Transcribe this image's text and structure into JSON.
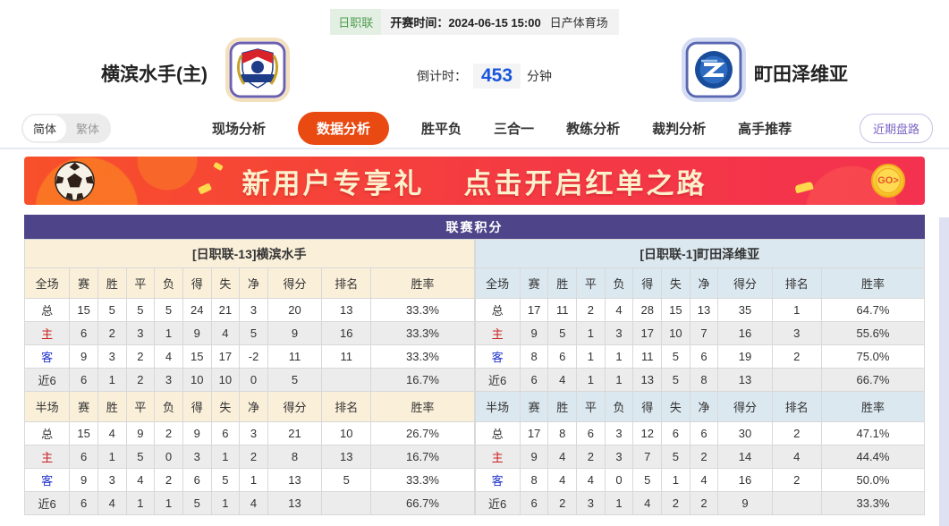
{
  "colors": {
    "title_bar_purple": "#4e4489",
    "active_tab_orange": "#e84a12",
    "home_label_red": "#cc2020",
    "away_label_blue": "#2233cc",
    "league_badge_green": "#4f9d4f",
    "countdown_blue": "#1a56db",
    "home_header_bg": "#faf0da",
    "away_header_bg": "#dce8f0",
    "banner_red": "#f43a43"
  },
  "topbar": {
    "league_badge": "日职联",
    "kickoff": "开赛时间：2024-06-15 15:00",
    "venue": "日产体育场"
  },
  "header": {
    "home_team": "横滨水手(主)",
    "away_team": "町田泽维亚",
    "countdown_label": "倒计时：",
    "countdown_value": "453",
    "countdown_unit": "分钟"
  },
  "nav": {
    "lang_simplified": "简体",
    "lang_traditional": "繁体",
    "tabs": [
      {
        "label": "现场分析",
        "active": false
      },
      {
        "label": "数据分析",
        "active": true
      },
      {
        "label": "胜平负",
        "active": false
      },
      {
        "label": "三合一",
        "active": false
      },
      {
        "label": "教练分析",
        "active": false
      },
      {
        "label": "裁判分析",
        "active": false
      },
      {
        "label": "高手推荐",
        "active": false
      }
    ],
    "recent_button": "近期盘路"
  },
  "banner": {
    "text1": "新用户专享礼",
    "text2": "点击开启红单之路",
    "go_label": "GO>"
  },
  "table": {
    "title": "联赛积分",
    "home": {
      "team_header": "[日职联-13]横滨水手",
      "full_columns": [
        "全场",
        "赛",
        "胜",
        "平",
        "负",
        "得",
        "失",
        "净",
        "得分",
        "排名",
        "胜率"
      ],
      "full_rows": [
        {
          "label": "总",
          "values": [
            "15",
            "5",
            "5",
            "5",
            "24",
            "21",
            "3",
            "20",
            "13",
            "33.3%"
          ]
        },
        {
          "label": "主",
          "values": [
            "6",
            "2",
            "3",
            "1",
            "9",
            "4",
            "5",
            "9",
            "16",
            "33.3%"
          ]
        },
        {
          "label": "客",
          "values": [
            "9",
            "3",
            "2",
            "4",
            "15",
            "17",
            "-2",
            "11",
            "11",
            "33.3%"
          ]
        },
        {
          "label": "近6",
          "values": [
            "6",
            "1",
            "2",
            "3",
            "10",
            "10",
            "0",
            "5",
            "",
            "16.7%"
          ]
        }
      ],
      "half_columns": [
        "半场",
        "赛",
        "胜",
        "平",
        "负",
        "得",
        "失",
        "净",
        "得分",
        "排名",
        "胜率"
      ],
      "half_rows": [
        {
          "label": "总",
          "values": [
            "15",
            "4",
            "9",
            "2",
            "9",
            "6",
            "3",
            "21",
            "10",
            "26.7%"
          ]
        },
        {
          "label": "主",
          "values": [
            "6",
            "1",
            "5",
            "0",
            "3",
            "1",
            "2",
            "8",
            "13",
            "16.7%"
          ]
        },
        {
          "label": "客",
          "values": [
            "9",
            "3",
            "4",
            "2",
            "6",
            "5",
            "1",
            "13",
            "5",
            "33.3%"
          ]
        },
        {
          "label": "近6",
          "values": [
            "6",
            "4",
            "1",
            "1",
            "5",
            "1",
            "4",
            "13",
            "",
            "66.7%"
          ]
        }
      ]
    },
    "away": {
      "team_header": "[日职联-1]町田泽维亚",
      "full_columns": [
        "全场",
        "赛",
        "胜",
        "平",
        "负",
        "得",
        "失",
        "净",
        "得分",
        "排名",
        "胜率"
      ],
      "full_rows": [
        {
          "label": "总",
          "values": [
            "17",
            "11",
            "2",
            "4",
            "28",
            "15",
            "13",
            "35",
            "1",
            "64.7%"
          ]
        },
        {
          "label": "主",
          "values": [
            "9",
            "5",
            "1",
            "3",
            "17",
            "10",
            "7",
            "16",
            "3",
            "55.6%"
          ]
        },
        {
          "label": "客",
          "values": [
            "8",
            "6",
            "1",
            "1",
            "11",
            "5",
            "6",
            "19",
            "2",
            "75.0%"
          ]
        },
        {
          "label": "近6",
          "values": [
            "6",
            "4",
            "1",
            "1",
            "13",
            "5",
            "8",
            "13",
            "",
            "66.7%"
          ]
        }
      ],
      "half_columns": [
        "半场",
        "赛",
        "胜",
        "平",
        "负",
        "得",
        "失",
        "净",
        "得分",
        "排名",
        "胜率"
      ],
      "half_rows": [
        {
          "label": "总",
          "values": [
            "17",
            "8",
            "6",
            "3",
            "12",
            "6",
            "6",
            "30",
            "2",
            "47.1%"
          ]
        },
        {
          "label": "主",
          "values": [
            "9",
            "4",
            "2",
            "3",
            "7",
            "5",
            "2",
            "14",
            "4",
            "44.4%"
          ]
        },
        {
          "label": "客",
          "values": [
            "8",
            "4",
            "4",
            "0",
            "5",
            "1",
            "4",
            "16",
            "2",
            "50.0%"
          ]
        },
        {
          "label": "近6",
          "values": [
            "6",
            "2",
            "3",
            "1",
            "4",
            "2",
            "2",
            "9",
            "",
            "33.3%"
          ]
        }
      ]
    }
  }
}
